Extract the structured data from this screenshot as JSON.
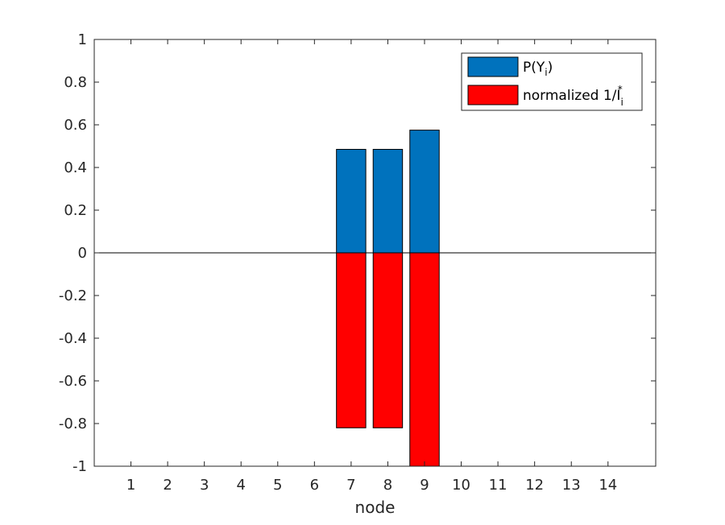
{
  "chart_data": {
    "type": "bar",
    "xlabel": "node",
    "categories": [
      "1",
      "2",
      "3",
      "4",
      "5",
      "6",
      "7",
      "8",
      "9",
      "10",
      "11",
      "12",
      "13",
      "14"
    ],
    "y_tick_labels": [
      "-1",
      "-0.8",
      "-0.6",
      "-0.4",
      "-0.2",
      "0",
      "0.2",
      "0.4",
      "0.6",
      "0.8",
      "1"
    ],
    "y_ticks": [
      -1,
      -0.8,
      -0.6,
      -0.4,
      -0.2,
      0,
      0.2,
      0.4,
      0.6,
      0.8,
      1
    ],
    "ylim": [
      -1,
      1
    ],
    "xlim": [
      0,
      15.3
    ],
    "grid": false,
    "legend_position": "top-right",
    "series": [
      {
        "name": "P(Y",
        "name_sub": "i",
        "name_after": ")",
        "color": "#0072BD",
        "values": [
          0,
          0,
          0,
          0,
          0,
          0,
          0.485,
          0.485,
          0.575,
          0,
          0,
          0,
          0,
          0
        ]
      },
      {
        "name": "normalized 1/I",
        "name_sub": "i",
        "name_sup": "*",
        "color": "#FF0000",
        "values": [
          0,
          0,
          0,
          0,
          0,
          0,
          -0.82,
          -0.82,
          -1,
          0,
          0,
          0,
          0,
          0
        ]
      }
    ]
  }
}
